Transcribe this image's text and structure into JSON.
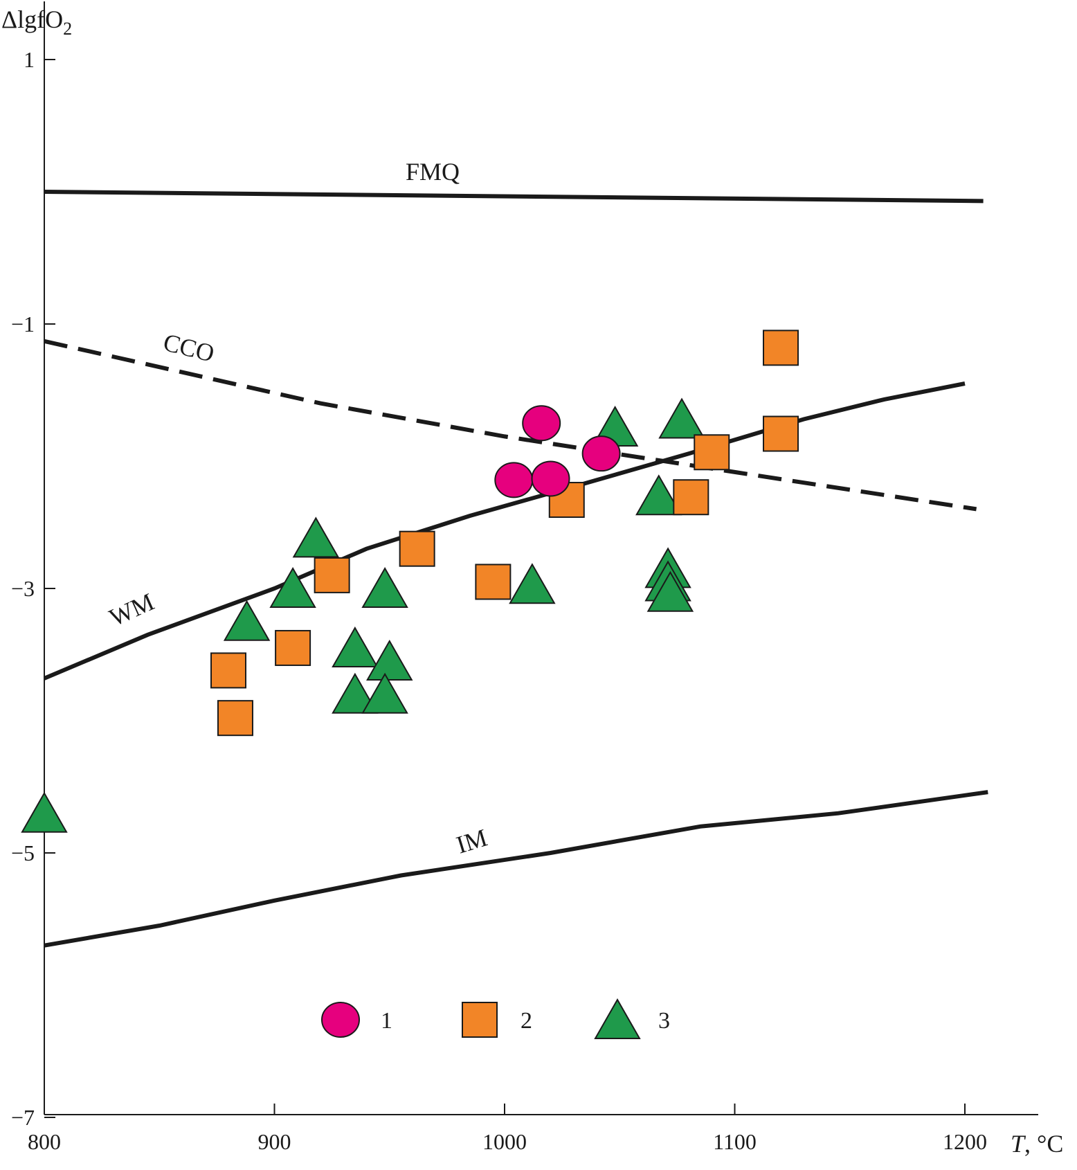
{
  "chart_data": {
    "type": "scatter",
    "ylabel": "ΔlgfO",
    "ylabel_sub": "2",
    "xlabel_italic": "T",
    "xlabel_unit": ", °C",
    "xlim": [
      800,
      1235
    ],
    "ylim": [
      -7,
      1.35
    ],
    "x_ticks": [
      800,
      900,
      1000,
      1100,
      1200
    ],
    "x_tick_labels": [
      "800",
      "900",
      "1000",
      "1100",
      "1200"
    ],
    "y_ticks": [
      1,
      -1,
      -3,
      -5,
      -7
    ],
    "y_tick_labels": [
      "1",
      "−1",
      "−3",
      "−5",
      "−7"
    ],
    "grid": false,
    "legend_position": "bottom-center",
    "reference_lines": [
      {
        "label": "FMQ",
        "style": "solid",
        "points": [
          [
            800,
            0.0
          ],
          [
            1208,
            -0.07
          ]
        ]
      },
      {
        "label": "CCO",
        "style": "dashed",
        "points": [
          [
            800,
            -1.13
          ],
          [
            920,
            -1.6
          ],
          [
            1000,
            -1.85
          ],
          [
            1100,
            -2.12
          ],
          [
            1205,
            -2.4
          ]
        ]
      },
      {
        "label": "WM",
        "style": "solid",
        "points": [
          [
            800,
            -3.68
          ],
          [
            845,
            -3.35
          ],
          [
            900,
            -3.0
          ],
          [
            940,
            -2.7
          ],
          [
            985,
            -2.45
          ],
          [
            1030,
            -2.23
          ],
          [
            1080,
            -1.98
          ],
          [
            1130,
            -1.72
          ],
          [
            1165,
            -1.57
          ],
          [
            1200,
            -1.45
          ]
        ]
      },
      {
        "label": "IM",
        "style": "solid",
        "points": [
          [
            800,
            -5.7
          ],
          [
            850,
            -5.55
          ],
          [
            900,
            -5.36
          ],
          [
            955,
            -5.17
          ],
          [
            1020,
            -5.0
          ],
          [
            1085,
            -4.8
          ],
          [
            1145,
            -4.7
          ],
          [
            1210,
            -4.54
          ]
        ]
      }
    ],
    "series": [
      {
        "name": "1",
        "marker": "circle",
        "color": "#e6007e",
        "points": [
          [
            1016,
            -1.75
          ],
          [
            1004,
            -2.18
          ],
          [
            1020,
            -2.17
          ],
          [
            1042,
            -1.98
          ]
        ]
      },
      {
        "name": "2",
        "marker": "square",
        "color": "#f28527",
        "points": [
          [
            1120,
            -1.18
          ],
          [
            1120,
            -1.83
          ],
          [
            1090,
            -1.97
          ],
          [
            1081,
            -2.31
          ],
          [
            1027,
            -2.33
          ],
          [
            962,
            -2.7
          ],
          [
            995,
            -2.95
          ],
          [
            925,
            -2.9
          ],
          [
            908,
            -3.45
          ],
          [
            880,
            -3.62
          ],
          [
            883,
            -3.98
          ]
        ]
      },
      {
        "name": "3",
        "marker": "triangle",
        "color": "#1f9a4b",
        "points": [
          [
            800,
            -4.7
          ],
          [
            888,
            -3.25
          ],
          [
            908,
            -3.0
          ],
          [
            918,
            -2.62
          ],
          [
            948,
            -3.0
          ],
          [
            935,
            -3.45
          ],
          [
            950,
            -3.55
          ],
          [
            935,
            -3.8
          ],
          [
            948,
            -3.8
          ],
          [
            1012,
            -2.97
          ],
          [
            1048,
            -1.78
          ],
          [
            1077,
            -1.72
          ],
          [
            1067,
            -2.3
          ],
          [
            1071,
            -2.85
          ],
          [
            1071,
            -2.95
          ],
          [
            1072,
            -3.03
          ]
        ]
      }
    ]
  }
}
